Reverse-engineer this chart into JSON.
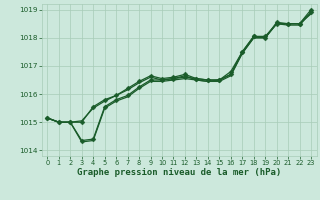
{
  "xlabel": "Graphe pression niveau de la mer (hPa)",
  "ylim": [
    1013.8,
    1019.2
  ],
  "xlim": [
    -0.5,
    23.5
  ],
  "yticks": [
    1014,
    1015,
    1016,
    1017,
    1018,
    1019
  ],
  "xticks": [
    0,
    1,
    2,
    3,
    4,
    5,
    6,
    7,
    8,
    9,
    10,
    11,
    12,
    13,
    14,
    15,
    16,
    17,
    18,
    19,
    20,
    21,
    22,
    23
  ],
  "bg_color": "#cce8dc",
  "grid_color": "#a8ccb8",
  "line_color": "#1a5c2a",
  "series": [
    [
      1015.15,
      1015.0,
      1015.0,
      1014.3,
      1014.35,
      1015.5,
      1015.75,
      1015.9,
      1016.2,
      1016.45,
      1016.45,
      1016.5,
      1016.55,
      1016.5,
      1016.45,
      1016.45,
      1016.65,
      1017.45,
      1018.0,
      1018.0,
      1018.5,
      1018.45,
      1018.45,
      1018.9
    ],
    [
      1015.15,
      1015.0,
      1015.0,
      1015.05,
      1015.5,
      1015.75,
      1015.95,
      1016.15,
      1016.4,
      1016.6,
      1016.5,
      1016.55,
      1016.65,
      1016.5,
      1016.45,
      1016.5,
      1016.7,
      1017.45,
      1018.0,
      1018.0,
      1018.5,
      1018.5,
      1018.5,
      1018.85
    ],
    [
      1015.15,
      1015.0,
      1015.0,
      1015.0,
      1015.55,
      1015.8,
      1015.95,
      1016.2,
      1016.45,
      1016.65,
      1016.55,
      1016.6,
      1016.7,
      1016.55,
      1016.5,
      1016.5,
      1016.7,
      1017.5,
      1018.05,
      1018.05,
      1018.5,
      1018.5,
      1018.5,
      1018.9
    ],
    [
      1015.15,
      1015.0,
      1015.0,
      1014.35,
      1014.4,
      1015.55,
      1015.8,
      1015.95,
      1016.25,
      1016.5,
      1016.5,
      1016.55,
      1016.6,
      1016.55,
      1016.5,
      1016.5,
      1016.8,
      1017.5,
      1018.05,
      1018.0,
      1018.55,
      1018.5,
      1018.5,
      1019.0
    ]
  ],
  "has_markers": [
    false,
    false,
    true,
    true
  ],
  "marker_every": [
    1,
    1,
    1,
    1
  ]
}
